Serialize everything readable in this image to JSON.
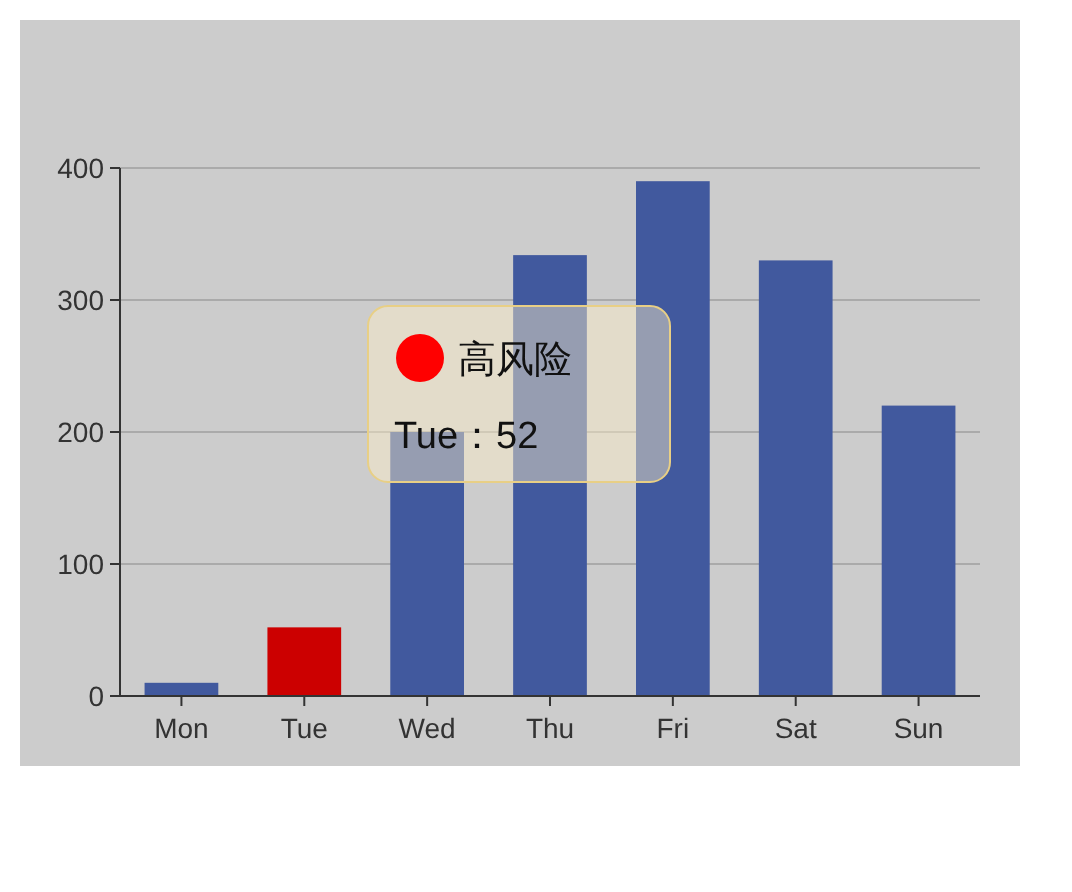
{
  "chart_data": {
    "type": "bar",
    "categories": [
      "Mon",
      "Tue",
      "Wed",
      "Thu",
      "Fri",
      "Sat",
      "Sun"
    ],
    "values": [
      10,
      52,
      200,
      334,
      390,
      330,
      220
    ],
    "colors": [
      "#41599e",
      "#cc0000",
      "#41599e",
      "#41599e",
      "#41599e",
      "#41599e",
      "#41599e"
    ],
    "ylim": [
      0,
      400
    ],
    "yticks": [
      0,
      100,
      200,
      300,
      400
    ],
    "grid": "y",
    "annotations": [
      "高风险",
      "Tue：52"
    ]
  }
}
